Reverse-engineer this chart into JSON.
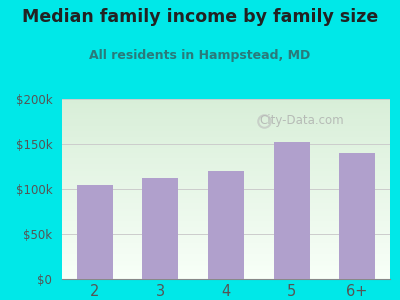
{
  "title": "Median family income by family size",
  "subtitle": "All residents in Hampstead, MD",
  "categories": [
    "2",
    "3",
    "4",
    "5",
    "6+"
  ],
  "values": [
    105000,
    112000,
    120000,
    152000,
    140000
  ],
  "bar_color": "#b0a0cc",
  "outer_bg": "#00e8e8",
  "grad_top": "#d8eed8",
  "grad_bottom": "#f8fff8",
  "title_color": "#222222",
  "subtitle_color": "#2a7a7a",
  "tick_color": "#555555",
  "grid_color": "#cccccc",
  "watermark": "City-Data.com",
  "ylim": [
    0,
    200000
  ],
  "yticks": [
    0,
    50000,
    100000,
    150000,
    200000
  ],
  "ytick_labels": [
    "$0",
    "$50k",
    "$100k",
    "$150k",
    "$200k"
  ]
}
